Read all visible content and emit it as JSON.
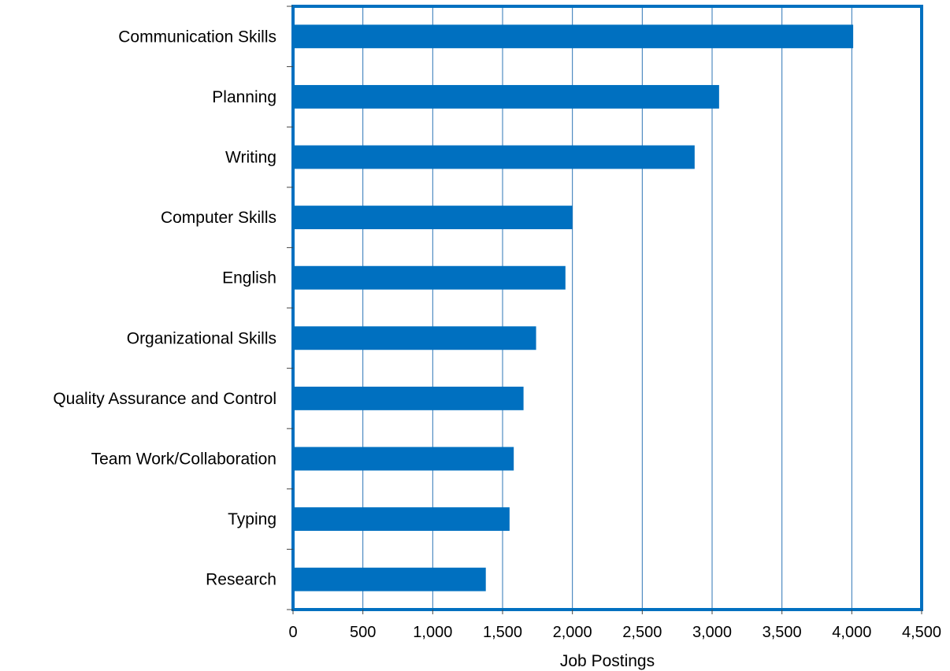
{
  "chart_data": {
    "type": "bar",
    "orientation": "horizontal",
    "categories": [
      "Communication Skills",
      "Planning",
      "Writing",
      "Computer Skills",
      "English",
      "Organizational Skills",
      "Quality Assurance and Control",
      "Team Work/Collaboration",
      "Typing",
      "Research"
    ],
    "values": [
      4010,
      3050,
      2875,
      2000,
      1950,
      1740,
      1650,
      1580,
      1550,
      1380
    ],
    "xlabel": "Job Postings",
    "ylabel": "",
    "title": "",
    "xlim": [
      0,
      4500
    ],
    "xticks": [
      "0",
      "500",
      "1,000",
      "1,500",
      "2,000",
      "2,500",
      "3,000",
      "3,500",
      "4,000",
      "4,500"
    ],
    "grid": "vertical",
    "legend": "none",
    "colors": {
      "bar": "#0070c0",
      "grid": "#2e75b6",
      "frame": "#0070c0"
    }
  }
}
